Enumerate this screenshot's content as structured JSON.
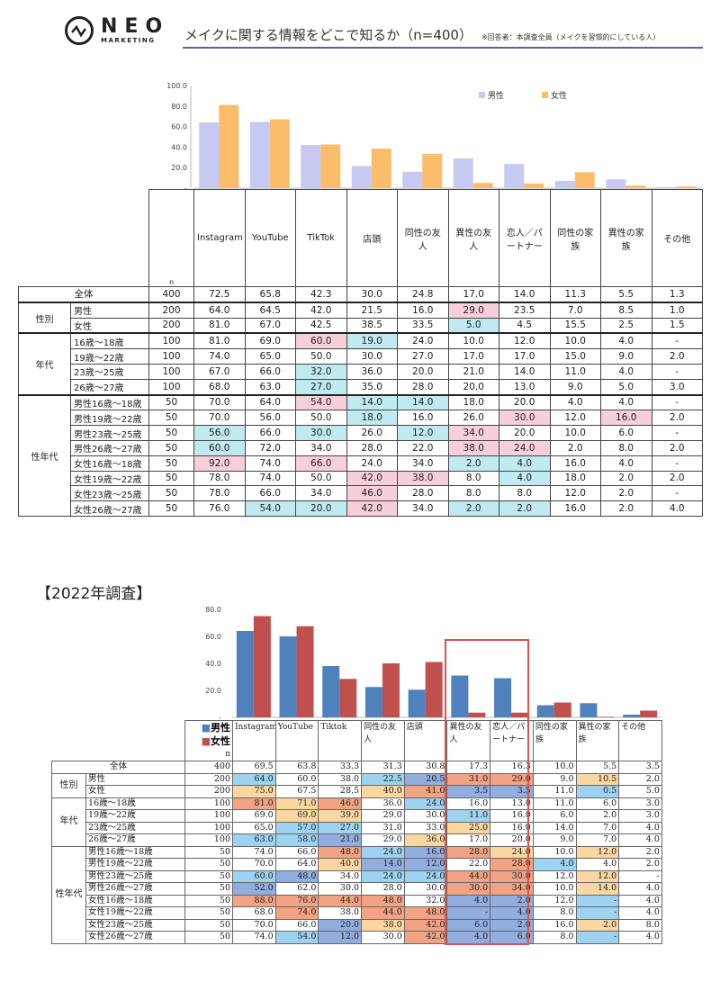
{
  "header": {
    "logo_text": "NEO",
    "logo_sub": "MARKETING",
    "title": "メイクに関する情報をどこで知るか（n=400）",
    "note": "※回答者：本調査全員（メイクを習慣的にしている人）"
  },
  "colors": {
    "male_2024": "#c6c9f1",
    "female_2024": "#fbbd6a",
    "male_2022": "#4f81bd",
    "female_2022": "#c0504d"
  },
  "chart_data": [
    {
      "type": "bar",
      "title": "",
      "legend": [
        "男性",
        "女性"
      ],
      "legend_position": "top-right",
      "ylim": [
        0,
        100
      ],
      "yticks": [
        "-",
        "20.0",
        "40.0",
        "60.0",
        "80.0",
        "100.0"
      ],
      "categories": [
        "Instagram",
        "YouTube",
        "TikTok",
        "店頭",
        "同性の友人",
        "異性の友人",
        "恋人／パートナー",
        "同性の家族",
        "異性の家族",
        "その他"
      ],
      "series": [
        {
          "name": "男性",
          "values": [
            64.0,
            64.5,
            42.0,
            21.5,
            16.0,
            29.0,
            23.5,
            7.0,
            8.5,
            1.0
          ]
        },
        {
          "name": "女性",
          "values": [
            81.0,
            67.0,
            42.5,
            38.5,
            33.5,
            5.0,
            4.5,
            15.5,
            2.5,
            1.5
          ]
        }
      ]
    },
    {
      "type": "bar",
      "title": "【2022年調査】",
      "legend": [
        "男性",
        "女性"
      ],
      "ylim": [
        0,
        80
      ],
      "yticks": [
        "-",
        "20.0",
        "40.0",
        "60.0",
        "80.0"
      ],
      "categories": [
        "Instagram",
        "YouTube",
        "Tiktok",
        "同性の友人",
        "店頭",
        "異性の友人",
        "恋人／パートナー",
        "同性の家族",
        "異性の家族",
        "その他"
      ],
      "series": [
        {
          "name": "男性",
          "values": [
            64.0,
            60.0,
            38.0,
            22.5,
            20.5,
            31.0,
            29.0,
            9.0,
            10.5,
            2.0
          ]
        },
        {
          "name": "女性",
          "values": [
            75.0,
            67.5,
            28.5,
            40.0,
            41.0,
            3.5,
            3.5,
            11.0,
            0.5,
            5.0
          ]
        }
      ]
    }
  ],
  "table1": {
    "n_label": "n",
    "headers": [
      "Instagram",
      "YouTube",
      "TikTok",
      "店頭",
      "同性の友人",
      "異性の友人",
      "恋人／パートナー",
      "同性の家族",
      "異性の家族",
      "その他"
    ],
    "rows": [
      {
        "g": "全体",
        "l": "",
        "n": "400",
        "v": [
          "72.5",
          "65.8",
          "42.3",
          "30.0",
          "24.8",
          "17.0",
          "14.0",
          "11.3",
          "5.5",
          "1.3"
        ],
        "h": ""
      },
      {
        "g": "性別",
        "span": 2,
        "l": "男性",
        "n": "200",
        "v": [
          "64.0",
          "64.5",
          "42.0",
          "21.5",
          "16.0",
          "29.0",
          "23.5",
          "7.0",
          "8.5",
          "1.0"
        ],
        "h": ".....p...."
      },
      {
        "l": "女性",
        "n": "200",
        "v": [
          "81.0",
          "67.0",
          "42.5",
          "38.5",
          "33.5",
          "5.0",
          "4.5",
          "15.5",
          "2.5",
          "1.5"
        ],
        "h": ".....c...."
      },
      {
        "g": "年代",
        "span": 4,
        "l": "16歳～18歳",
        "n": "100",
        "v": [
          "81.0",
          "69.0",
          "60.0",
          "19.0",
          "24.0",
          "10.0",
          "12.0",
          "10.0",
          "4.0",
          "-"
        ],
        "h": "..pc......"
      },
      {
        "l": "19歳～22歳",
        "n": "100",
        "v": [
          "74.0",
          "65.0",
          "50.0",
          "30.0",
          "27.0",
          "17.0",
          "17.0",
          "15.0",
          "9.0",
          "2.0"
        ],
        "h": ""
      },
      {
        "l": "23歳～25歳",
        "n": "100",
        "v": [
          "67.0",
          "66.0",
          "32.0",
          "36.0",
          "20.0",
          "21.0",
          "14.0",
          "11.0",
          "4.0",
          "-"
        ],
        "h": "..c......."
      },
      {
        "l": "26歳～27歳",
        "n": "100",
        "v": [
          "68.0",
          "63.0",
          "27.0",
          "35.0",
          "28.0",
          "20.0",
          "13.0",
          "9.0",
          "5.0",
          "3.0"
        ],
        "h": "..c......."
      },
      {
        "g": "性年代",
        "span": 8,
        "l": "男性16歳～18歳",
        "n": "50",
        "v": [
          "70.0",
          "64.0",
          "54.0",
          "14.0",
          "14.0",
          "18.0",
          "20.0",
          "4.0",
          "4.0",
          "-"
        ],
        "h": "..pcc....."
      },
      {
        "l": "男性19歳～22歳",
        "n": "50",
        "v": [
          "70.0",
          "56.0",
          "50.0",
          "18.0",
          "16.0",
          "26.0",
          "30.0",
          "12.0",
          "16.0",
          "2.0"
        ],
        "h": "...c..p.p."
      },
      {
        "l": "男性23歳～25歳",
        "n": "50",
        "v": [
          "56.0",
          "66.0",
          "30.0",
          "26.0",
          "12.0",
          "34.0",
          "20.0",
          "10.0",
          "6.0",
          "-"
        ],
        "h": "c.c.cp...."
      },
      {
        "l": "男性26歳～27歳",
        "n": "50",
        "v": [
          "60.0",
          "72.0",
          "34.0",
          "28.0",
          "22.0",
          "38.0",
          "24.0",
          "2.0",
          "8.0",
          "2.0"
        ],
        "h": "c....pp..."
      },
      {
        "l": "女性16歳～18歳",
        "n": "50",
        "v": [
          "92.0",
          "74.0",
          "66.0",
          "24.0",
          "34.0",
          "2.0",
          "4.0",
          "16.0",
          "4.0",
          "-"
        ],
        "h": "p.p..cc..."
      },
      {
        "l": "女性19歳～22歳",
        "n": "50",
        "v": [
          "78.0",
          "74.0",
          "50.0",
          "42.0",
          "38.0",
          "8.0",
          "4.0",
          "18.0",
          "2.0",
          "2.0"
        ],
        "h": "...pp.c..."
      },
      {
        "l": "女性23歳～25歳",
        "n": "50",
        "v": [
          "78.0",
          "66.0",
          "34.0",
          "46.0",
          "28.0",
          "8.0",
          "8.0",
          "12.0",
          "2.0",
          "-"
        ],
        "h": "...p......"
      },
      {
        "l": "女性26歳～27歳",
        "n": "50",
        "v": [
          "76.0",
          "54.0",
          "20.0",
          "42.0",
          "34.0",
          "2.0",
          "2.0",
          "16.0",
          "2.0",
          "4.0"
        ],
        "h": ".ccp.cc..."
      }
    ]
  },
  "table2": {
    "legend_male": "■男性",
    "legend_female": "■女性",
    "n_label": "n",
    "headers": [
      "Instagram",
      "YouTube",
      "Tiktok",
      "同性の友人",
      "店頭",
      "異性の友人",
      "恋人／パートナー",
      "同性の家族",
      "異性の家族",
      "その他"
    ],
    "rows": [
      {
        "g": "全体",
        "l": "",
        "n": "400",
        "v": [
          "69.5",
          "63.8",
          "33.3",
          "31.3",
          "30.8",
          "17.3",
          "16.3",
          "10.0",
          "5.5",
          "3.5"
        ],
        "h": ""
      },
      {
        "g": "性別",
        "span": 2,
        "l": "男性",
        "n": "200",
        "v": [
          "64.0",
          "60.0",
          "38.0",
          "22.5",
          "20.5",
          "31.0",
          "29.0",
          "9.0",
          "10.5",
          "2.0"
        ],
        "h": "b..bdrr.o."
      },
      {
        "l": "女性",
        "n": "200",
        "v": [
          "75.0",
          "67.5",
          "28.5",
          "40.0",
          "41.0",
          "3.5",
          "3.5",
          "11.0",
          "0.5",
          "5.0"
        ],
        "h": "o..ordd.b."
      },
      {
        "g": "年代",
        "span": 4,
        "l": "16歳～18歳",
        "n": "100",
        "v": [
          "81.0",
          "71.0",
          "46.0",
          "36.0",
          "24.0",
          "16.0",
          "13.0",
          "11.0",
          "6.0",
          "3.0"
        ],
        "h": "ror.b....."
      },
      {
        "l": "19歳～22歳",
        "n": "100",
        "v": [
          "69.0",
          "69.0",
          "39.0",
          "29.0",
          "30.0",
          "11.0",
          "16.0",
          "6.0",
          "2.0",
          "3.0"
        ],
        "h": ".oo..b...."
      },
      {
        "l": "23歳～25歳",
        "n": "100",
        "v": [
          "65.0",
          "57.0",
          "27.0",
          "31.0",
          "33.0",
          "25.0",
          "16.0",
          "14.0",
          "7.0",
          "4.0"
        ],
        "h": ".bb..o...."
      },
      {
        "l": "26歳～27歳",
        "n": "100",
        "v": [
          "63.0",
          "58.0",
          "21.0",
          "29.0",
          "36.0",
          "17.0",
          "20.0",
          "9.0",
          "7.0",
          "4.0"
        ],
        "h": "bbd.o....."
      },
      {
        "g": "性年代",
        "span": 8,
        "l": "男性16歳～18歳",
        "n": "50",
        "v": [
          "74.0",
          "66.0",
          "48.0",
          "24.0",
          "16.0",
          "28.0",
          "24.0",
          "10.0",
          "12.0",
          "2.0"
        ],
        "h": "..rbdro.o."
      },
      {
        "l": "男性19歳～22歳",
        "n": "50",
        "v": [
          "70.0",
          "64.0",
          "40.0",
          "14.0",
          "12.0",
          "22.0",
          "28.0",
          "4.0",
          "4.0",
          "2.0"
        ],
        "h": "..odd.rb.."
      },
      {
        "l": "男性23歳～25歳",
        "n": "50",
        "v": [
          "60.0",
          "48.0",
          "34.0",
          "24.0",
          "24.0",
          "44.0",
          "30.0",
          "12.0",
          "12.0",
          "-"
        ],
        "h": "bd.bbrr.o."
      },
      {
        "l": "男性26歳～27歳",
        "n": "50",
        "v": [
          "52.0",
          "62.0",
          "30.0",
          "28.0",
          "30.0",
          "30.0",
          "34.0",
          "10.0",
          "14.0",
          "4.0"
        ],
        "h": "d....rr.o."
      },
      {
        "l": "女性16歳～18歳",
        "n": "50",
        "v": [
          "88.0",
          "76.0",
          "44.0",
          "48.0",
          "32.0",
          "4.0",
          "2.0",
          "12.0",
          "-",
          "4.0"
        ],
        "h": "rrrr.dd.b."
      },
      {
        "l": "女性19歳～22歳",
        "n": "50",
        "v": [
          "68.0",
          "74.0",
          "38.0",
          "44.0",
          "48.0",
          "-",
          "4.0",
          "8.0",
          "-",
          "4.0"
        ],
        "h": ".r.rrdd.b."
      },
      {
        "l": "女性23歳～25歳",
        "n": "50",
        "v": [
          "70.0",
          "66.0",
          "20.0",
          "38.0",
          "42.0",
          "6.0",
          "2.0",
          "16.0",
          "2.0",
          "8.0"
        ],
        "h": "..dordd o.."
      },
      {
        "l": "女性26歳～27歳",
        "n": "50",
        "v": [
          "74.0",
          "54.0",
          "12.0",
          "30.0",
          "42.0",
          "4.0",
          "6.0",
          "8.0",
          "-",
          "4.0"
        ],
        "h": ".bd.rdd.b."
      }
    ]
  }
}
